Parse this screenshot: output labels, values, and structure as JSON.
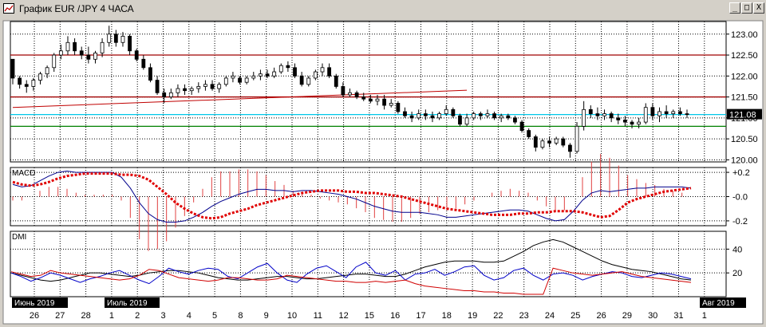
{
  "window": {
    "title": "График EUR /JPY  4 ЧАСА",
    "controls": {
      "minimize": "_",
      "maximize": "□",
      "close": "X"
    }
  },
  "colors": {
    "chart_bg": "#ffffff",
    "grid": "#000000",
    "candle": "#000000",
    "resistance": "#a00000",
    "trend": "#c00000",
    "current_price": "#00c8e8",
    "support": "#008000",
    "macd_signal": "#e00000",
    "macd_line": "#00008c",
    "macd_hist": "#e04040",
    "dmi_adx": "#000000",
    "dmi_plus": "#0000c8",
    "dmi_minus": "#d00000"
  },
  "chart_data": [
    {
      "type": "candlestick",
      "panel": "price",
      "y_ticks": [
        "123.00",
        "122.50",
        "122.00",
        "121.50",
        "121.00",
        "120.50",
        "120.00"
      ],
      "ylim": [
        119.95,
        123.3
      ],
      "current_price": "121.08",
      "horizontal_lines": {
        "resistance": [
          122.5,
          121.5
        ],
        "support": 120.8,
        "current": 121.08
      },
      "trend_line": {
        "from": [
          0,
          121.25
        ],
        "to": [
          66,
          121.66
        ]
      },
      "candles": [
        [
          122.4,
          122.4,
          121.8,
          121.95
        ],
        [
          121.95,
          122.0,
          121.7,
          121.8
        ],
        [
          121.8,
          121.9,
          121.6,
          121.75
        ],
        [
          121.75,
          121.95,
          121.65,
          121.9
        ],
        [
          121.9,
          122.1,
          121.8,
          122.05
        ],
        [
          122.05,
          122.25,
          121.95,
          122.2
        ],
        [
          122.2,
          122.55,
          122.1,
          122.5
        ],
        [
          122.5,
          122.75,
          122.4,
          122.6
        ],
        [
          122.6,
          122.95,
          122.5,
          122.8
        ],
        [
          122.8,
          122.9,
          122.5,
          122.6
        ],
        [
          122.6,
          122.7,
          122.4,
          122.5
        ],
        [
          122.5,
          122.7,
          122.3,
          122.4
        ],
        [
          122.4,
          122.6,
          122.3,
          122.55
        ],
        [
          122.55,
          122.9,
          122.45,
          122.8
        ],
        [
          122.8,
          123.2,
          122.7,
          123.0
        ],
        [
          123.0,
          123.1,
          122.7,
          122.8
        ],
        [
          122.8,
          123.05,
          122.7,
          122.95
        ],
        [
          122.95,
          123.0,
          122.5,
          122.6
        ],
        [
          122.6,
          122.65,
          122.35,
          122.4
        ],
        [
          122.4,
          122.5,
          122.15,
          122.2
        ],
        [
          122.2,
          122.3,
          121.85,
          121.9
        ],
        [
          121.9,
          122.0,
          121.55,
          121.6
        ],
        [
          121.6,
          121.7,
          121.35,
          121.5
        ],
        [
          121.5,
          121.7,
          121.45,
          121.6
        ],
        [
          121.6,
          121.8,
          121.5,
          121.7
        ],
        [
          121.7,
          121.8,
          121.55,
          121.65
        ],
        [
          121.65,
          121.75,
          121.55,
          121.7
        ],
        [
          121.7,
          121.85,
          121.6,
          121.75
        ],
        [
          121.75,
          121.9,
          121.65,
          121.8
        ],
        [
          121.8,
          121.9,
          121.65,
          121.7
        ],
        [
          121.7,
          121.85,
          121.6,
          121.8
        ],
        [
          121.8,
          122.0,
          121.75,
          121.95
        ],
        [
          121.95,
          122.1,
          121.85,
          122.0
        ],
        [
          121.95,
          122.0,
          121.8,
          121.85
        ],
        [
          121.85,
          122.0,
          121.8,
          121.95
        ],
        [
          121.95,
          122.1,
          121.9,
          122.0
        ],
        [
          122.0,
          122.15,
          121.9,
          122.05
        ],
        [
          122.05,
          122.15,
          121.95,
          122.0
        ],
        [
          122.0,
          122.2,
          121.95,
          122.1
        ],
        [
          122.1,
          122.3,
          122.05,
          122.25
        ],
        [
          122.25,
          122.35,
          122.1,
          122.2
        ],
        [
          122.2,
          122.3,
          121.95,
          122.0
        ],
        [
          122.0,
          122.1,
          121.75,
          121.8
        ],
        [
          121.8,
          122.0,
          121.75,
          121.95
        ],
        [
          121.95,
          122.15,
          121.9,
          122.1
        ],
        [
          122.1,
          122.3,
          122.0,
          122.2
        ],
        [
          122.2,
          122.3,
          121.95,
          122.0
        ],
        [
          122.0,
          122.05,
          121.7,
          121.75
        ],
        [
          121.75,
          121.85,
          121.5,
          121.55
        ],
        [
          121.55,
          121.7,
          121.5,
          121.6
        ],
        [
          121.6,
          121.65,
          121.45,
          121.5
        ],
        [
          121.5,
          121.6,
          121.4,
          121.45
        ],
        [
          121.45,
          121.55,
          121.35,
          121.4
        ],
        [
          121.4,
          121.55,
          121.3,
          121.45
        ],
        [
          121.45,
          121.55,
          121.2,
          121.3
        ],
        [
          121.3,
          121.45,
          121.25,
          121.35
        ],
        [
          121.35,
          121.4,
          121.1,
          121.15
        ],
        [
          121.15,
          121.25,
          121.0,
          121.05
        ],
        [
          121.05,
          121.15,
          120.9,
          121.0
        ],
        [
          121.0,
          121.2,
          120.95,
          121.1
        ],
        [
          121.1,
          121.2,
          120.95,
          121.05
        ],
        [
          121.05,
          121.15,
          120.9,
          121.0
        ],
        [
          121.0,
          121.15,
          120.95,
          121.1
        ],
        [
          121.1,
          121.3,
          121.05,
          121.2
        ],
        [
          121.2,
          121.25,
          121.0,
          121.05
        ],
        [
          121.05,
          121.1,
          120.8,
          120.85
        ],
        [
          120.85,
          121.1,
          120.8,
          121.0
        ],
        [
          121.0,
          121.15,
          120.95,
          121.1
        ],
        [
          121.1,
          121.15,
          120.95,
          121.05
        ],
        [
          121.05,
          121.2,
          121.0,
          121.1
        ],
        [
          121.1,
          121.15,
          120.95,
          121.0
        ],
        [
          121.0,
          121.1,
          120.9,
          121.05
        ],
        [
          121.05,
          121.1,
          120.95,
          121.0
        ],
        [
          121.0,
          121.05,
          120.85,
          120.9
        ],
        [
          120.9,
          120.95,
          120.65,
          120.7
        ],
        [
          120.7,
          120.75,
          120.5,
          120.55
        ],
        [
          120.55,
          120.6,
          120.2,
          120.3
        ],
        [
          120.3,
          120.5,
          120.25,
          120.45
        ],
        [
          120.45,
          120.55,
          120.3,
          120.4
        ],
        [
          120.4,
          120.55,
          120.35,
          120.5
        ],
        [
          120.5,
          120.55,
          120.3,
          120.35
        ],
        [
          120.35,
          120.4,
          120.05,
          120.2
        ],
        [
          120.2,
          120.9,
          120.15,
          120.8
        ],
        [
          120.8,
          121.4,
          120.7,
          121.2
        ],
        [
          121.2,
          121.3,
          121.0,
          121.1
        ],
        [
          121.1,
          121.25,
          120.95,
          121.05
        ],
        [
          121.05,
          121.2,
          120.95,
          121.1
        ],
        [
          121.1,
          121.15,
          120.9,
          121.0
        ],
        [
          121.0,
          121.1,
          120.85,
          120.95
        ],
        [
          120.95,
          121.05,
          120.8,
          120.9
        ],
        [
          120.9,
          120.95,
          120.75,
          120.85
        ],
        [
          120.85,
          121.0,
          120.75,
          120.9
        ],
        [
          120.9,
          121.35,
          120.85,
          121.25
        ],
        [
          121.25,
          121.35,
          120.95,
          121.05
        ],
        [
          121.05,
          121.25,
          120.9,
          121.15
        ],
        [
          121.15,
          121.3,
          121.0,
          121.1
        ],
        [
          121.1,
          121.2,
          121.0,
          121.15
        ],
        [
          121.15,
          121.25,
          121.05,
          121.1
        ],
        [
          121.1,
          121.2,
          121.0,
          121.08
        ]
      ]
    },
    {
      "type": "line",
      "panel": "macd",
      "title": "MACD",
      "y_ticks": [
        "+0.2",
        "-0.0",
        "-0.2"
      ],
      "ylim": [
        -0.24,
        0.24
      ],
      "series": [
        {
          "role": "signal",
          "style": "dotted-thick",
          "values": [
            0.12,
            0.1,
            0.09,
            0.1,
            0.12,
            0.15,
            0.17,
            0.18,
            0.19,
            0.19,
            0.19,
            0.19,
            0.18,
            0.18,
            0.17,
            0.14,
            0.08,
            0.02,
            -0.05,
            -0.1,
            -0.14,
            -0.17,
            -0.18,
            -0.17,
            -0.14,
            -0.12,
            -0.1,
            -0.07,
            -0.05,
            -0.03,
            -0.01,
            0.01,
            0.03,
            0.04,
            0.05,
            0.05,
            0.05,
            0.04,
            0.04,
            0.03,
            0.03,
            0.02,
            0.01,
            0.0,
            -0.02,
            -0.04,
            -0.06,
            -0.08,
            -0.1,
            -0.11,
            -0.12,
            -0.13,
            -0.14,
            -0.15,
            -0.15,
            -0.15,
            -0.14,
            -0.14,
            -0.13,
            -0.13,
            -0.12,
            -0.12,
            -0.12,
            -0.13,
            -0.15,
            -0.17,
            -0.16,
            -0.11,
            -0.05,
            -0.02,
            0.0,
            0.02,
            0.04,
            0.05,
            0.06,
            0.07
          ]
        },
        {
          "role": "macd",
          "style": "line",
          "values": [
            0.1,
            0.08,
            0.09,
            0.13,
            0.17,
            0.2,
            0.21,
            0.2,
            0.2,
            0.2,
            0.2,
            0.2,
            0.16,
            0.07,
            -0.05,
            -0.14,
            -0.19,
            -0.21,
            -0.21,
            -0.2,
            -0.17,
            -0.13,
            -0.08,
            -0.04,
            -0.01,
            0.02,
            0.04,
            0.06,
            0.06,
            0.05,
            0.05,
            0.04,
            0.05,
            0.05,
            0.04,
            0.03,
            0.02,
            0.0,
            -0.02,
            -0.05,
            -0.08,
            -0.1,
            -0.12,
            -0.13,
            -0.13,
            -0.13,
            -0.14,
            -0.15,
            -0.17,
            -0.17,
            -0.16,
            -0.15,
            -0.14,
            -0.13,
            -0.12,
            -0.11,
            -0.11,
            -0.12,
            -0.15,
            -0.18,
            -0.2,
            -0.19,
            -0.12,
            -0.03,
            0.03,
            0.05,
            0.04,
            0.05,
            0.06,
            0.07,
            0.07,
            0.08,
            0.08,
            0.08,
            0.08,
            0.07
          ]
        }
      ]
    },
    {
      "type": "line",
      "panel": "dmi",
      "title": "DMI",
      "y_ticks": [
        "40",
        "20"
      ],
      "ylim": [
        0,
        55
      ],
      "series": [
        {
          "role": "adx",
          "values": [
            20,
            18,
            16,
            14,
            13,
            14,
            16,
            18,
            20,
            20,
            19,
            18,
            17,
            18,
            20,
            21,
            22,
            22,
            21,
            20,
            18,
            16,
            15,
            14,
            14,
            15,
            16,
            17,
            17,
            16,
            15,
            15,
            16,
            17,
            18,
            19,
            19,
            18,
            17,
            17,
            19,
            22,
            25,
            27,
            29,
            30,
            30,
            30,
            29,
            29,
            30,
            34,
            38,
            43,
            46,
            48,
            46,
            42,
            38,
            34,
            30,
            27,
            25,
            23,
            22,
            21,
            19,
            17,
            15,
            14
          ]
        },
        {
          "role": "plus_di",
          "values": [
            20,
            17,
            13,
            16,
            20,
            18,
            15,
            12,
            15,
            17,
            20,
            22,
            18,
            14,
            11,
            17,
            24,
            21,
            19,
            22,
            24,
            23,
            17,
            15,
            20,
            25,
            28,
            20,
            14,
            12,
            19,
            24,
            26,
            21,
            16,
            25,
            29,
            20,
            18,
            22,
            14,
            19,
            20,
            23,
            18,
            21,
            25,
            26,
            18,
            14,
            16,
            22,
            24,
            18,
            14,
            19,
            20,
            18,
            14,
            17,
            19,
            21,
            20,
            17,
            16,
            18,
            20,
            19,
            17,
            15
          ]
        },
        {
          "role": "minus_di",
          "values": [
            21,
            19,
            17,
            18,
            22,
            20,
            19,
            18,
            17,
            16,
            15,
            14,
            15,
            18,
            23,
            22,
            19,
            16,
            15,
            14,
            13,
            14,
            16,
            16,
            15,
            14,
            14,
            15,
            18,
            17,
            16,
            15,
            14,
            13,
            13,
            12,
            12,
            13,
            12,
            13,
            14,
            11,
            9,
            8,
            7,
            6,
            5,
            5,
            4,
            4,
            3,
            3,
            2,
            2,
            2,
            24,
            22,
            20,
            19,
            18,
            19,
            20,
            21,
            19,
            17,
            16,
            15,
            14,
            13,
            12
          ]
        }
      ]
    }
  ],
  "x_axis": {
    "tick_labels": [
      "26",
      "27",
      "28",
      "1",
      "2",
      "3",
      "4",
      "5",
      "8",
      "9",
      "10",
      "11",
      "12",
      "15",
      "16",
      "17",
      "18",
      "19",
      "22",
      "23",
      "24",
      "25",
      "26",
      "29",
      "30",
      "31",
      "1"
    ],
    "month_labels": [
      "Июнь 2019",
      "Июль 2019",
      "Авг 2019"
    ]
  }
}
